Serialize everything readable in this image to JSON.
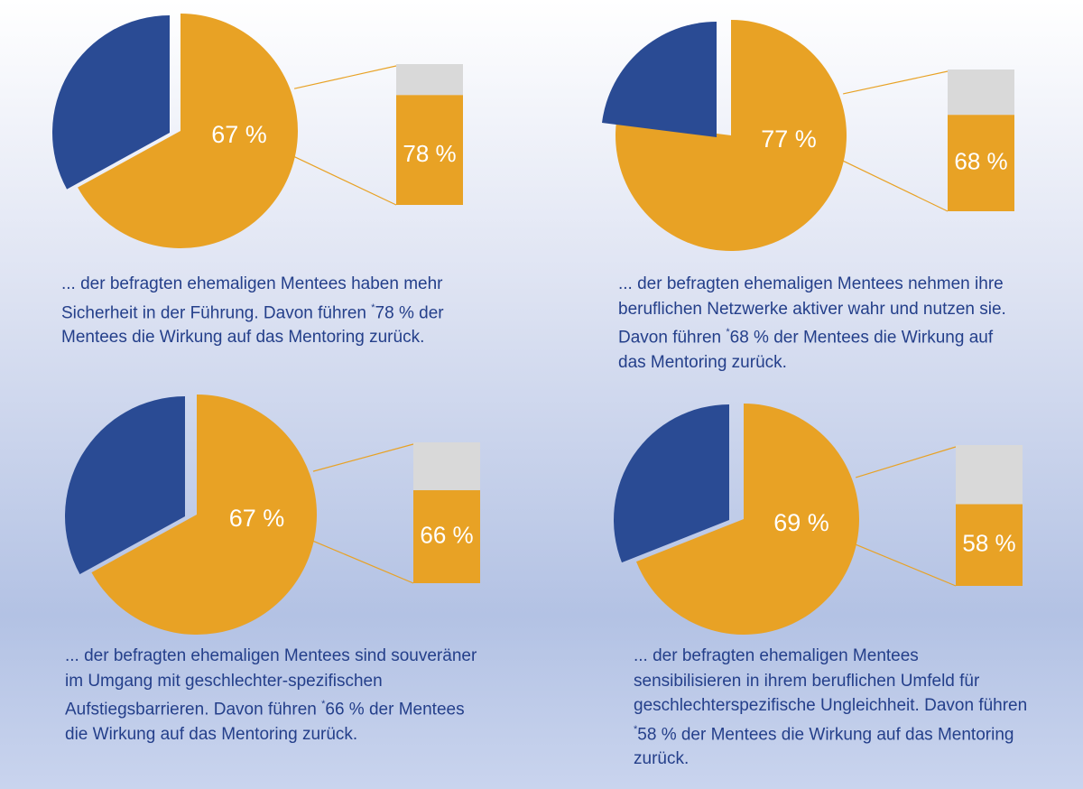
{
  "colors": {
    "accent": "#e8a225",
    "secondary": "#2a4b94",
    "bar_rest": "#d9d9d9",
    "text": "#243f8a"
  },
  "chart_data": [
    {
      "type": "pie",
      "slices": [
        {
          "label": "67 %",
          "value": 67,
          "color": "#e8a225"
        },
        {
          "label": "",
          "value": 33,
          "color": "#2a4b94"
        }
      ],
      "breakdown": {
        "type": "bar",
        "label": "78 %",
        "value": 78
      },
      "caption": {
        "before": "... der befragten ehemaligen Mentees haben mehr Sicherheit in der Führung. Davon führen ",
        "mark": "*",
        "after": "78 % der Mentees die Wirkung auf das Mentoring zurück."
      }
    },
    {
      "type": "pie",
      "slices": [
        {
          "label": "77 %",
          "value": 77,
          "color": "#e8a225"
        },
        {
          "label": "",
          "value": 23,
          "color": "#2a4b94"
        }
      ],
      "breakdown": {
        "type": "bar",
        "label": "68 %",
        "value": 68
      },
      "caption": {
        "before": "... der befragten ehemaligen Mentees nehmen ihre beruflichen Netzwerke aktiver wahr und nutzen sie. Davon führen ",
        "mark": "*",
        "after": "68 % der Mentees die Wirkung auf das Mentoring zurück."
      }
    },
    {
      "type": "pie",
      "slices": [
        {
          "label": "67 %",
          "value": 67,
          "color": "#e8a225"
        },
        {
          "label": "",
          "value": 33,
          "color": "#2a4b94"
        }
      ],
      "breakdown": {
        "type": "bar",
        "label": "66 %",
        "value": 66
      },
      "caption": {
        "before": "... der befragten ehemaligen Mentees sind souveräner im Umgang mit geschlechter-spezifischen Aufstiegsbarrieren. Davon führen ",
        "mark": "*",
        "after": "66 % der Mentees die Wirkung auf das Mentoring zurück."
      }
    },
    {
      "type": "pie",
      "slices": [
        {
          "label": "69 %",
          "value": 69,
          "color": "#e8a225"
        },
        {
          "label": "",
          "value": 31,
          "color": "#2a4b94"
        }
      ],
      "breakdown": {
        "type": "bar",
        "label": "58 %",
        "value": 58
      },
      "caption": {
        "before": "... der befragten ehemaligen Mentees sensibilisieren in ihrem beruflichen Umfeld für geschlechterspezifische Ungleichheit. Davon führen ",
        "mark": "*",
        "after": "58 % der Mentees die Wirkung auf das Mentoring zurück."
      }
    }
  ]
}
